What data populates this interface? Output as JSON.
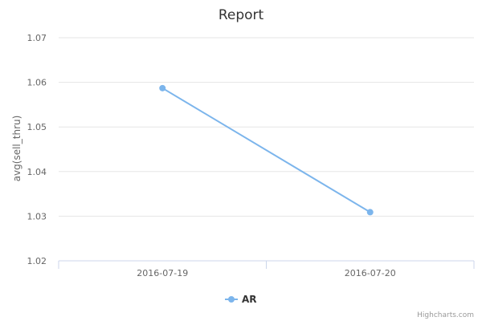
{
  "chart_data": {
    "type": "line",
    "title": "Report",
    "xlabel": "",
    "ylabel": "avg(sell_thru)",
    "categories": [
      "2016-07-19",
      "2016-07-20"
    ],
    "series": [
      {
        "name": "AR",
        "color": "#7cb5ec",
        "values": [
          1.0587,
          1.0309
        ]
      }
    ],
    "ylim": [
      1.02,
      1.07
    ],
    "yticks": [
      "1.02",
      "1.03",
      "1.04",
      "1.05",
      "1.06",
      "1.07"
    ],
    "grid": true,
    "legend_position": "bottom-center"
  },
  "credits": "Highcharts.com"
}
